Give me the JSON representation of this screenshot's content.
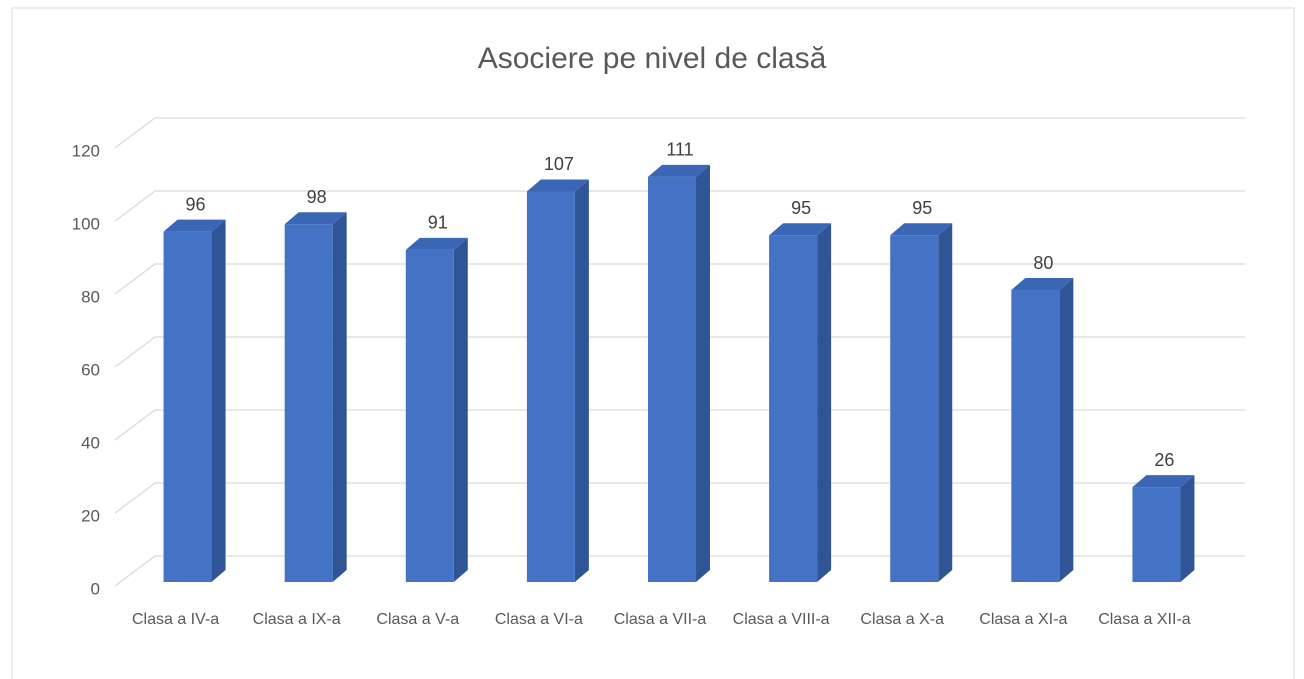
{
  "chart_data": {
    "type": "bar3d",
    "title": "Asociere pe nivel de clasă",
    "categories": [
      "Clasa a IV-a",
      "Clasa a IX-a",
      "Clasa a V-a",
      "Clasa a VI-a",
      "Clasa a VII-a",
      "Clasa a VIII-a",
      "Clasa a X-a",
      "Clasa a XI-a",
      "Clasa a XII-a"
    ],
    "values": [
      96,
      98,
      91,
      107,
      111,
      95,
      95,
      80,
      26
    ],
    "color": "#4472c4",
    "ylim": [
      0,
      120
    ],
    "yticks": [
      0,
      20,
      40,
      60,
      80,
      100,
      120
    ],
    "grid": true
  }
}
